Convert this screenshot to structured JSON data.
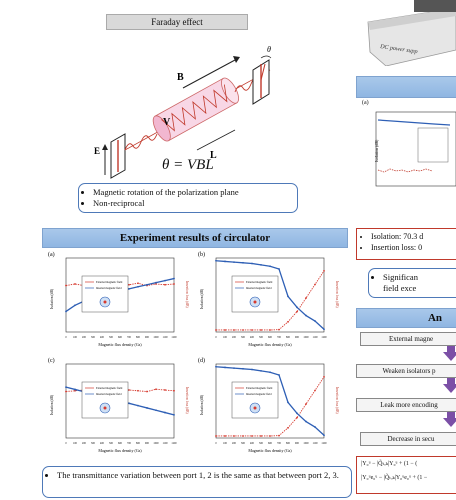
{
  "faraday": {
    "title": "Faraday effect",
    "formula": "θ = VBL",
    "labels": {
      "b": "B",
      "v": "V",
      "l": "L",
      "e": "E",
      "theta": "θ"
    },
    "bullets": [
      "Magnetic rotation of the polarization plane",
      "Non-reciprocal"
    ]
  },
  "experiment": {
    "title": "Experiment results of circulator",
    "panel_labels": [
      "(a)",
      "(b)",
      "(c)",
      "(d)"
    ],
    "inset_lines": [
      "External magnetic field",
      "Internal magnetic field"
    ],
    "ylabel_left": "Isolation (dB)",
    "ylabel_right": "Insertion loss (dB)",
    "xlabel": "Magnetic flux density (Gs)",
    "note": "The transmittance variation between port 1, 2 is the same as that between port 2, 3."
  },
  "right": {
    "device_label": "DC power supp",
    "panel_label": "(a)",
    "results": [
      "Isolation: 70.3 d",
      "Insertion loss: 0"
    ],
    "significance": [
      "Significan",
      "field exce"
    ],
    "analysis_title": "An",
    "flow": [
      "External magne",
      "Weaken isolators p",
      "Leak more encoding",
      "Decrease in secu"
    ],
    "formulas": [
      "|Y₀ᵘ − |Q̃ₜₒₖ|Y₀ᵘ + (1 − (",
      "|Y₀ᵘe₀ᵘ − |Q̃ₜₒₖ|Y₀ᵘe₀ᵘ + (1 −"
    ]
  },
  "chart_data": [
    {
      "type": "line",
      "label": "(a)",
      "xlabel": "Magnetic flux density (Gs)",
      "x": [
        0,
        100,
        200,
        300,
        400,
        500,
        600,
        700,
        800,
        900,
        1000,
        1100,
        1200
      ],
      "series": [
        {
          "name": "Isolation",
          "values": [
            40.0,
            40.6,
            41.0,
            41.3,
            41.6,
            41.8,
            42.0,
            42.2,
            42.4,
            42.6,
            42.8,
            43.0,
            43.2
          ]
        },
        {
          "name": "Insertion loss",
          "values": [
            0.6,
            0.62,
            0.6,
            0.63,
            0.61,
            0.6,
            0.62,
            0.61,
            0.63,
            0.6,
            0.62,
            0.61,
            0.62
          ]
        }
      ]
    },
    {
      "type": "line",
      "label": "(b)",
      "xlabel": "Magnetic flux density (Gs)",
      "x": [
        0,
        100,
        200,
        300,
        400,
        500,
        600,
        700,
        800,
        900,
        1000,
        1100,
        1200
      ],
      "series": [
        {
          "name": "Isolation",
          "values": [
            70,
            69.5,
            69,
            68.5,
            68,
            67,
            66,
            64,
            44,
            36,
            30,
            26,
            20
          ]
        },
        {
          "name": "Insertion loss",
          "values": [
            0.6,
            0.6,
            0.6,
            0.6,
            0.6,
            0.6,
            0.6,
            0.7,
            3,
            6,
            10,
            14,
            18
          ]
        }
      ]
    },
    {
      "type": "line",
      "label": "(c)",
      "xlabel": "Magnetic flux density (Gs)",
      "x": [
        0,
        100,
        200,
        300,
        400,
        500,
        600,
        700,
        800,
        900,
        1000,
        1100,
        1200
      ],
      "series": [
        {
          "name": "Isolation",
          "values": [
            43,
            42.8,
            42.6,
            42.4,
            42.2,
            42,
            41.8,
            41.6,
            41.4,
            41.2,
            41,
            40.8,
            40.6
          ]
        },
        {
          "name": "Insertion loss",
          "values": [
            0.6,
            0.61,
            0.62,
            0.6,
            0.63,
            0.61,
            0.6,
            0.62,
            0.61,
            0.6,
            0.63,
            0.62,
            0.61
          ]
        }
      ]
    },
    {
      "type": "line",
      "label": "(d)",
      "xlabel": "Magnetic flux density (Gs)",
      "x": [
        0,
        100,
        200,
        300,
        400,
        500,
        600,
        700,
        800,
        900,
        1000,
        1100,
        1200
      ],
      "series": [
        {
          "name": "Isolation",
          "values": [
            70,
            69.5,
            69,
            68.5,
            68,
            67,
            66,
            64,
            44,
            36,
            30,
            26,
            20
          ]
        },
        {
          "name": "Insertion loss",
          "values": [
            0.6,
            0.6,
            0.6,
            0.6,
            0.6,
            0.6,
            0.6,
            0.7,
            3,
            6,
            10,
            14,
            18
          ]
        }
      ]
    }
  ]
}
